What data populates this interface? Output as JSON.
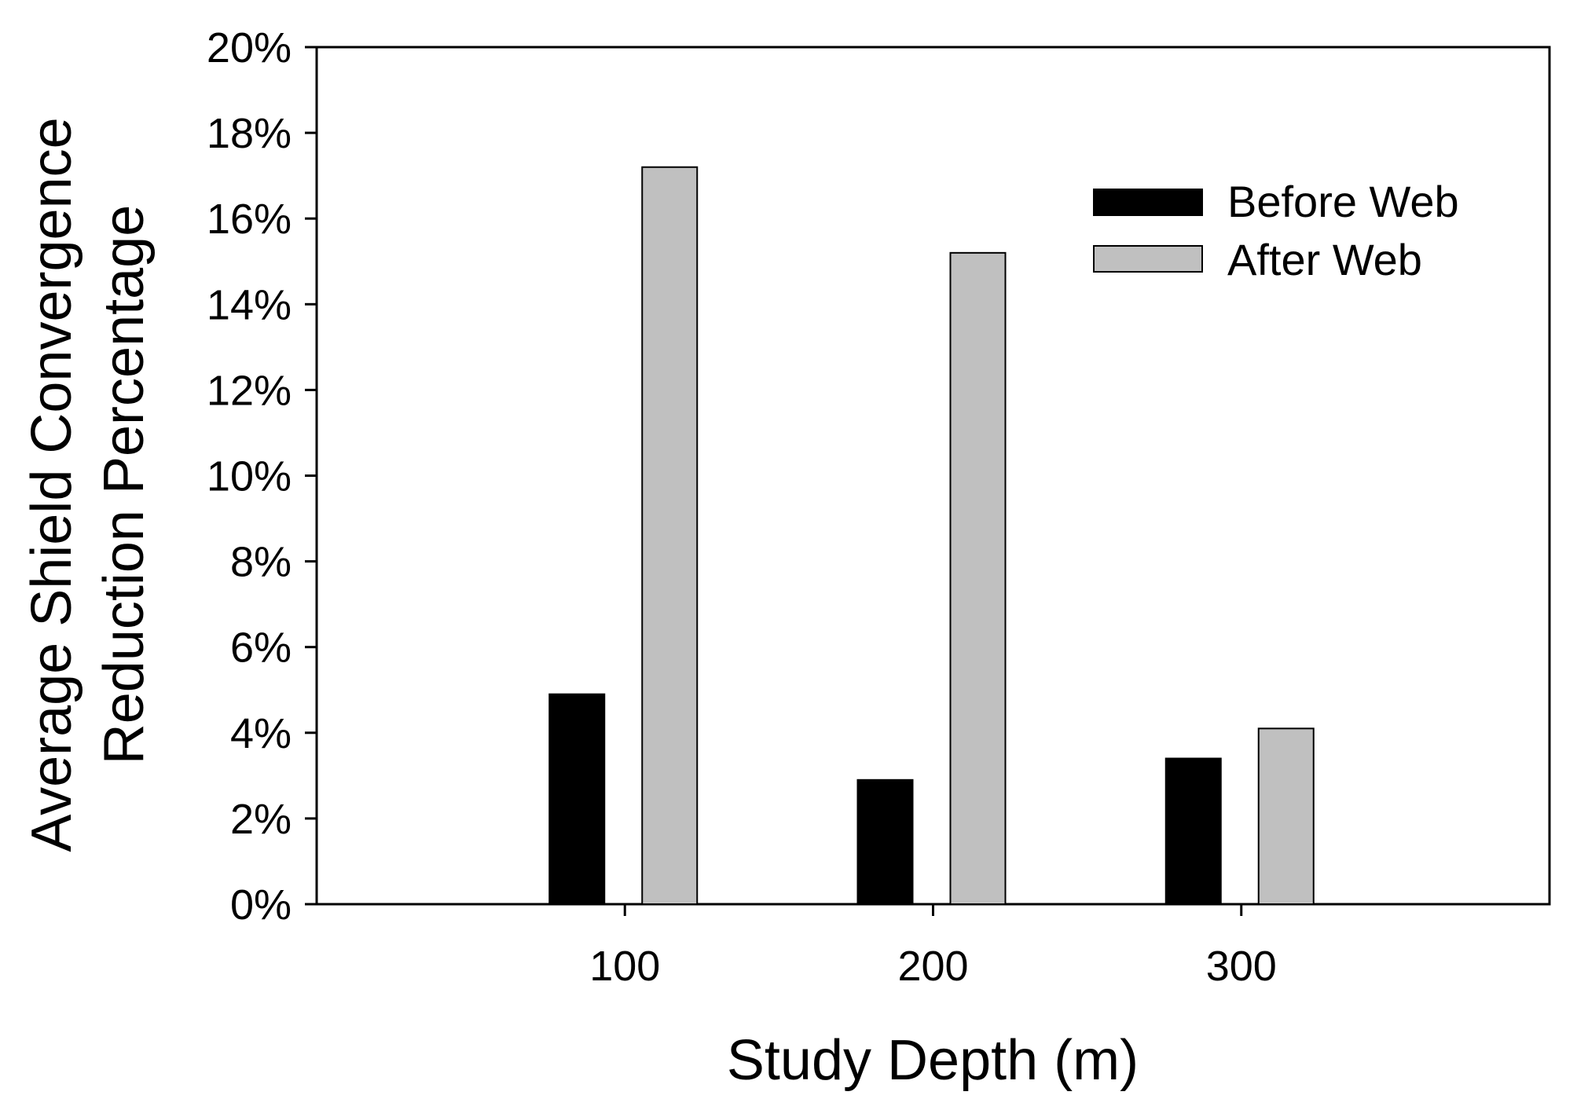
{
  "chart_data": {
    "type": "bar",
    "title": "",
    "xlabel": "Study Depth (m)",
    "ylabel_lines": [
      "Average Shield Convergence",
      "Reduction Percentage"
    ],
    "categories": [
      "100",
      "200",
      "300"
    ],
    "x_range": [
      0,
      400
    ],
    "ylim": [
      0,
      20
    ],
    "y_ticks": [
      0,
      2,
      4,
      6,
      8,
      10,
      12,
      14,
      16,
      18,
      20
    ],
    "y_tick_labels": [
      "0%",
      "2%",
      "4%",
      "6%",
      "8%",
      "10%",
      "12%",
      "14%",
      "16%",
      "18%",
      "20%"
    ],
    "grid": false,
    "legend_position": "top-right",
    "series": [
      {
        "name": "Before Web",
        "color": "#000000",
        "values": [
          4.9,
          2.9,
          3.4
        ]
      },
      {
        "name": "After Web",
        "color": "#c0c0c0",
        "values": [
          17.2,
          15.2,
          4.1
        ]
      }
    ]
  }
}
